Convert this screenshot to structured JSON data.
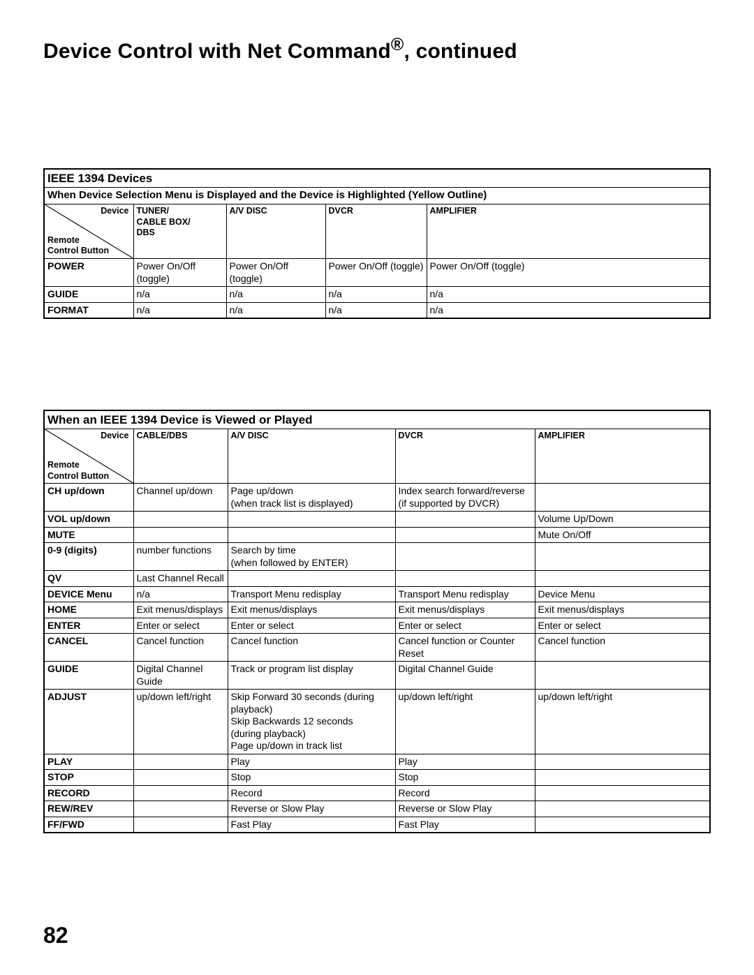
{
  "page": {
    "title_html": "Device Control with Net Command<sup>®</sup>, continued",
    "page_number": "82"
  },
  "table1": {
    "title": "IEEE 1394 Devices",
    "subtitle": "When Device Selection Menu is Displayed and the Device is Highlighted (Yellow Outline)",
    "diag_top": "Device",
    "diag_bottom": "Remote\nControl  Button",
    "columns": [
      "TUNER/\nCABLE BOX/\nDBS",
      "A/V DISC",
      "DVCR",
      "AMPLIFIER"
    ],
    "rows": [
      {
        "label": "POWER",
        "cells": [
          "Power On/Off (toggle)",
          "Power On/Off (toggle)",
          "Power On/Off (toggle)",
          "Power On/Off (toggle)"
        ]
      },
      {
        "label": "GUIDE",
        "cells": [
          "n/a",
          "n/a",
          "n/a",
          "n/a"
        ]
      },
      {
        "label": "FORMAT",
        "cells": [
          "n/a",
          "n/a",
          "n/a",
          "n/a"
        ]
      }
    ]
  },
  "table2": {
    "title": "When an IEEE 1394 Device is Viewed or Played",
    "diag_top": "Device",
    "diag_bottom": "Remote\nControl  Button",
    "columns": [
      "CABLE/DBS",
      "A/V DISC",
      "DVCR",
      "AMPLIFIER"
    ],
    "rows": [
      {
        "label": "CH up/down",
        "cells": [
          "Channel up/down",
          "Page up/down\n(when track list is displayed)",
          "Index search forward/reverse (if supported by DVCR)",
          ""
        ]
      },
      {
        "label": "VOL up/down",
        "cells": [
          "",
          "",
          "",
          "Volume Up/Down"
        ]
      },
      {
        "label": "MUTE",
        "cells": [
          "",
          "",
          "",
          "Mute On/Off"
        ]
      },
      {
        "label": "0-9 (digits)",
        "cells": [
          "number functions",
          "Search by time\n(when followed by ENTER)",
          "",
          ""
        ]
      },
      {
        "label": "QV",
        "cells": [
          "Last Channel Recall",
          "",
          "",
          ""
        ]
      },
      {
        "label": "DEVICE Menu",
        "cells": [
          "n/a",
          "Transport Menu redisplay",
          "Transport Menu redisplay",
          "Device Menu"
        ]
      },
      {
        "label": "HOME",
        "cells": [
          "Exit menus/displays",
          "Exit menus/displays",
          "Exit menus/displays",
          "Exit menus/displays"
        ]
      },
      {
        "label": "ENTER",
        "cells": [
          "Enter or select",
          "Enter or select",
          "Enter or select",
          "Enter or select"
        ]
      },
      {
        "label": "CANCEL",
        "cells": [
          "Cancel function",
          "Cancel function",
          "Cancel function or Counter Reset",
          "Cancel function"
        ]
      },
      {
        "label": "GUIDE",
        "cells": [
          "Digital Channel Guide",
          "Track or program list display",
          "Digital Channel Guide",
          ""
        ]
      },
      {
        "label": "ADJUST",
        "cells": [
          "up/down left/right",
          "Skip Forward 30 seconds (during playback)\nSkip Backwards 12 seconds\n (during playback)\nPage up/down in track list",
          "up/down left/right",
          "up/down left/right"
        ]
      },
      {
        "label": "PLAY",
        "cells": [
          "",
          "Play",
          "Play",
          ""
        ]
      },
      {
        "label": "STOP",
        "cells": [
          "",
          "Stop",
          "Stop",
          ""
        ]
      },
      {
        "label": "RECORD",
        "cells": [
          "",
          "Record",
          "Record",
          ""
        ]
      },
      {
        "label": "REW/REV",
        "cells": [
          "",
          "Reverse or Slow Play",
          "Reverse or Slow Play",
          ""
        ]
      },
      {
        "label": "FF/FWD",
        "cells": [
          "",
          "Fast Play",
          "Fast Play",
          ""
        ]
      }
    ]
  }
}
